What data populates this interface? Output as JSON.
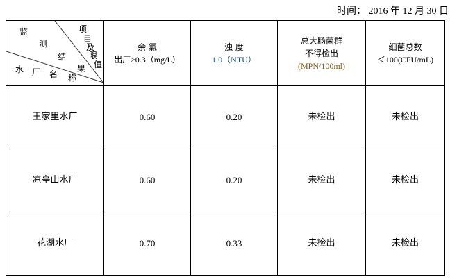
{
  "date_line": "时间： 2016 年 12 月 30 日",
  "corner": {
    "top_chars": [
      "监",
      "测",
      "结",
      "果"
    ],
    "right_chars": [
      "项",
      "目",
      "及",
      "限",
      "值"
    ],
    "bottom_chars": [
      "水",
      "厂",
      "名",
      "称"
    ]
  },
  "headers": [
    {
      "line1": "余 氯",
      "line2": "出厂≥0.3（mg/L）"
    },
    {
      "line1": "浊 度",
      "line2": "1.0（NTU）"
    },
    {
      "line1": "总大肠菌群",
      "line2": "不得检出",
      "line3": "(MPN/100ml)"
    },
    {
      "line1": "细菌总数",
      "line2": "＜100(CFU/mL)"
    }
  ],
  "rows": [
    {
      "name": "王家里水厂",
      "chlorine": "0.60",
      "turbidity": "0.20",
      "coliform": "未检出",
      "bacteria": "未检出"
    },
    {
      "name": "凉亭山水厂",
      "chlorine": "0.60",
      "turbidity": "0.20",
      "coliform": "未检出",
      "bacteria": "未检出"
    },
    {
      "name": "花湖水厂",
      "chlorine": "0.70",
      "turbidity": "0.33",
      "coliform": "未检出",
      "bacteria": "未检出"
    }
  ]
}
